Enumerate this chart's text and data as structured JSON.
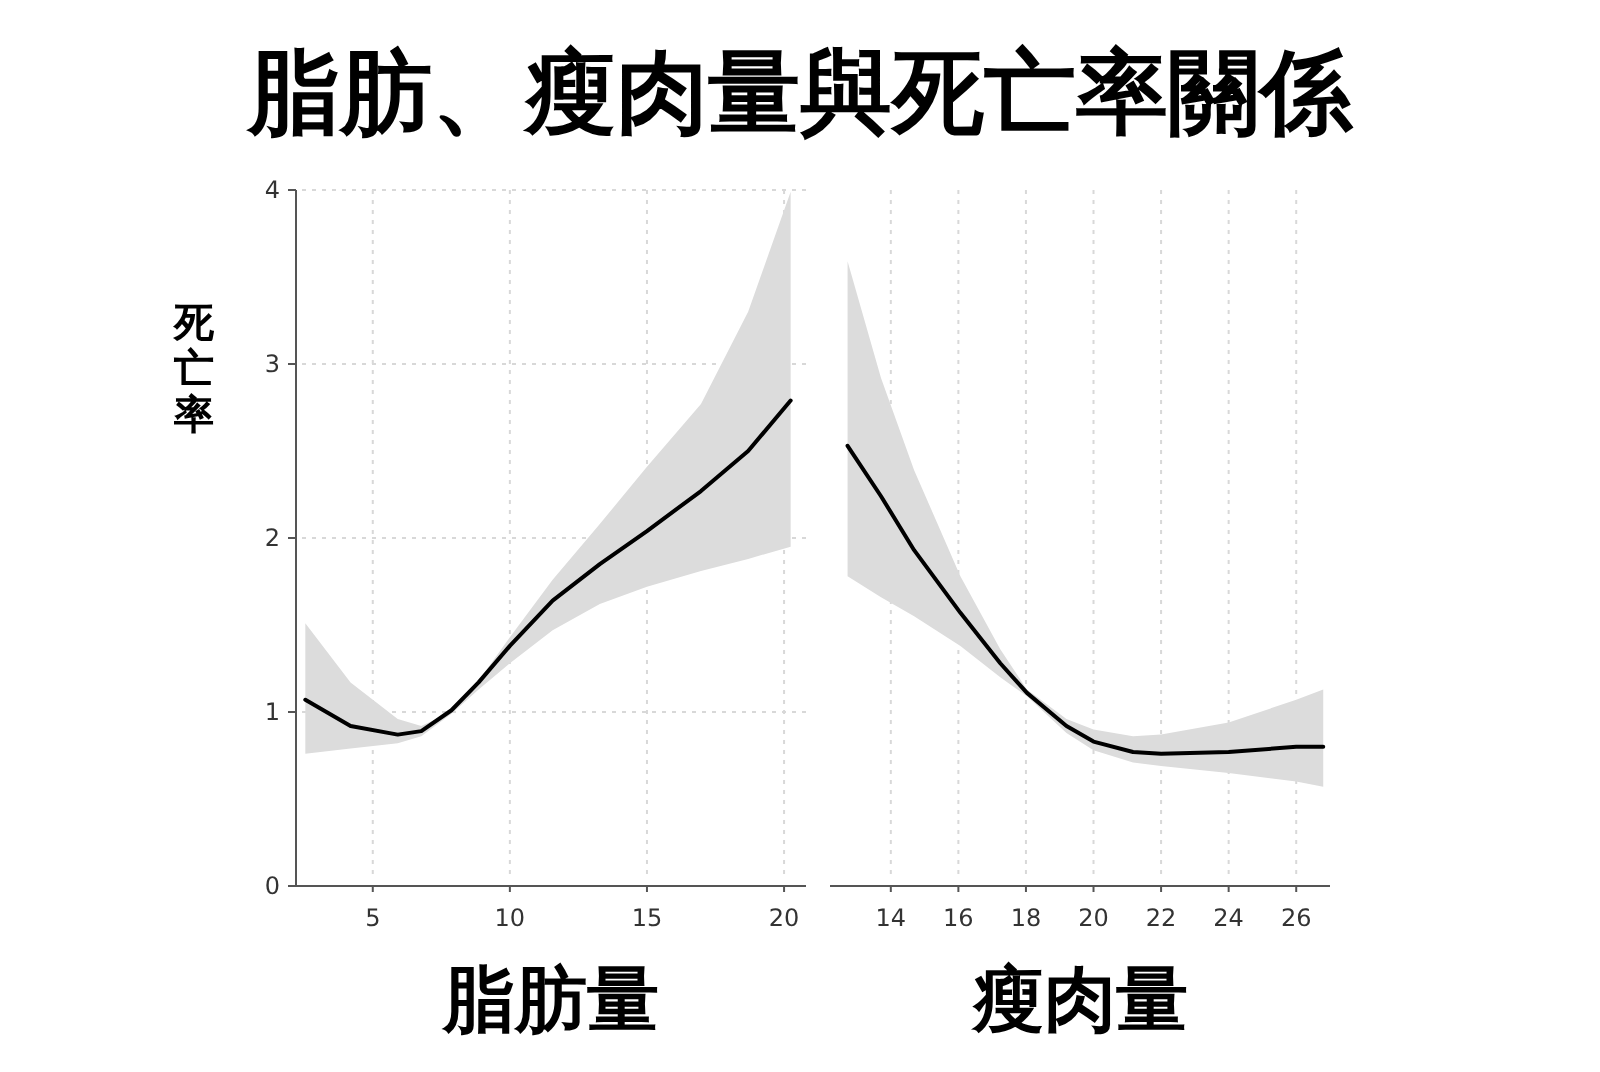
{
  "chart_data": [
    {
      "type": "line",
      "title": "脂肪、瘦肉量與死亡率關係",
      "xlabel": "脂肪量",
      "ylabel": "死亡率",
      "xlim": [
        2.2,
        20.8
      ],
      "ylim": [
        0,
        4
      ],
      "xticks": [
        5,
        10,
        15,
        20
      ],
      "yticks": [
        0,
        1,
        2,
        3,
        4
      ],
      "grid": true,
      "series": [
        {
          "color": "#000000",
          "x": [
            2.54,
            4.19,
            5.91,
            6.77,
            7.87,
            8.86,
            10.0,
            11.56,
            13.28,
            15.0,
            16.97,
            18.69,
            20.24
          ],
          "values": [
            1.07,
            0.92,
            0.87,
            0.89,
            1.01,
            1.17,
            1.38,
            1.64,
            1.85,
            2.04,
            2.27,
            2.5,
            2.79
          ],
          "lower": [
            0.76,
            0.79,
            0.82,
            0.86,
            0.99,
            1.13,
            1.28,
            1.47,
            1.62,
            1.72,
            1.81,
            1.88,
            1.95
          ],
          "upper": [
            1.51,
            1.17,
            0.96,
            0.92,
            1.0,
            1.18,
            1.43,
            1.76,
            2.08,
            2.41,
            2.77,
            3.3,
            3.99
          ]
        }
      ]
    },
    {
      "type": "line",
      "xlabel": "瘦肉量",
      "xlim": [
        12.2,
        27
      ],
      "ylim": [
        0,
        4
      ],
      "xticks": [
        14,
        16,
        18,
        20,
        22,
        24,
        26
      ],
      "grid": true,
      "tick_labels": "x",
      "series": [
        {
          "color": "#000000",
          "x": [
            12.72,
            13.71,
            14.69,
            16.06,
            17.24,
            18.03,
            19.2,
            20.0,
            21.17,
            22.0,
            24.0,
            26.0,
            26.8
          ],
          "values": [
            2.53,
            2.24,
            1.93,
            1.57,
            1.28,
            1.11,
            0.92,
            0.83,
            0.77,
            0.76,
            0.77,
            0.8,
            0.8
          ],
          "lower": [
            1.78,
            1.66,
            1.55,
            1.38,
            1.2,
            1.09,
            0.88,
            0.78,
            0.71,
            0.69,
            0.65,
            0.6,
            0.57
          ],
          "upper": [
            3.59,
            2.92,
            2.39,
            1.78,
            1.36,
            1.13,
            0.96,
            0.9,
            0.86,
            0.87,
            0.94,
            1.07,
            1.13
          ]
        }
      ]
    }
  ]
}
